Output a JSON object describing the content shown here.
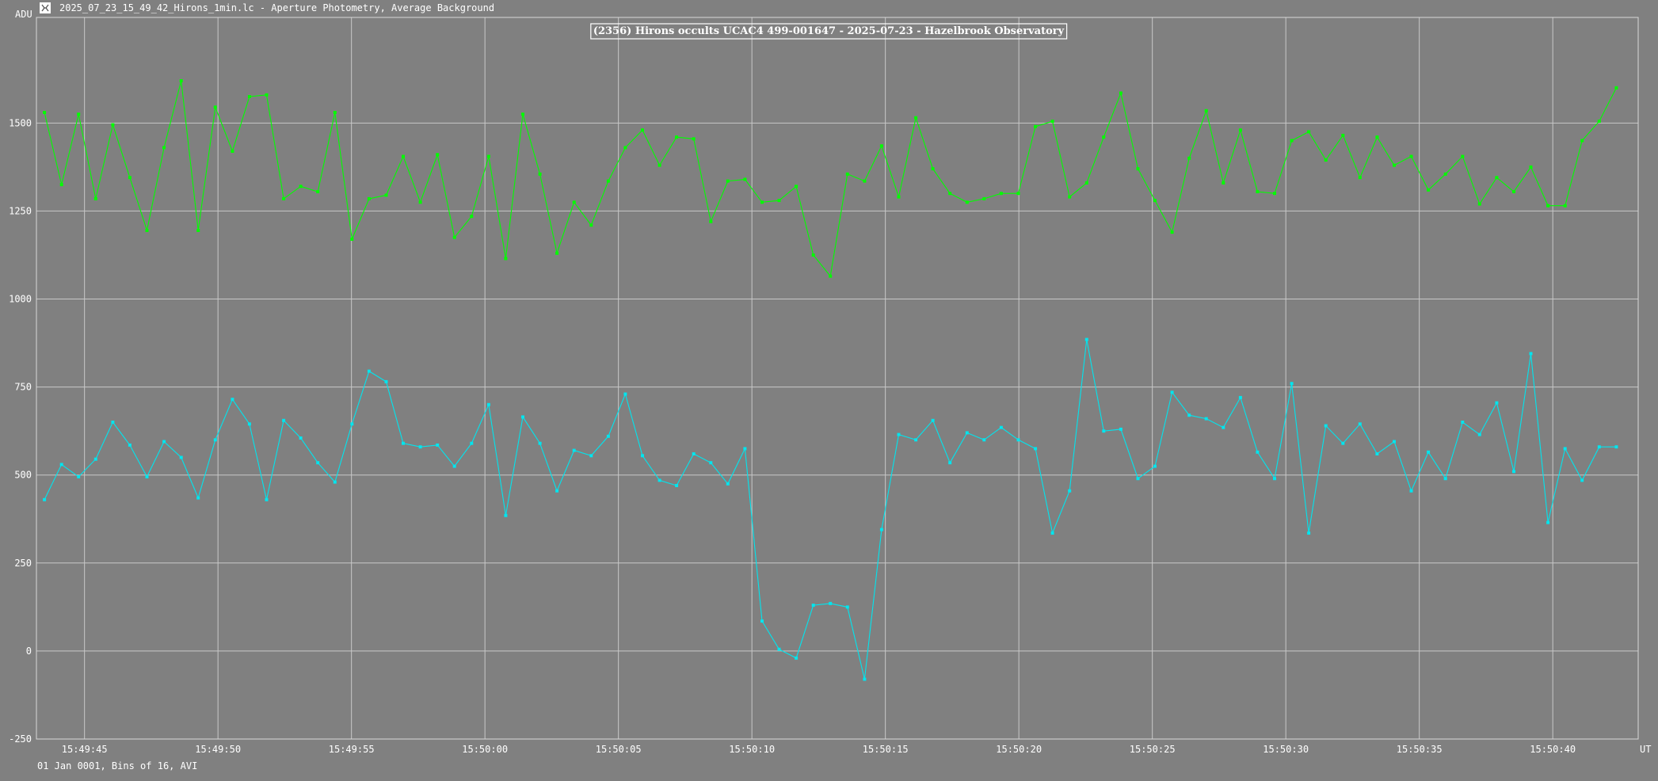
{
  "window": {
    "title": "2025_07_23_15_49_42_Hirons_1min.lc - Aperture Photometry, Average Background",
    "icon": "lightcurve-app-icon"
  },
  "status": {
    "bottom_left": "01 Jan 0001, Bins of 16, AVI"
  },
  "chart_data": {
    "type": "line",
    "title": "(2356) Hirons occults UCAC4 499-001647 - 2025-07-23 - Hazelbrook Observatory",
    "ylabel": "ADU",
    "xlabel": "UT",
    "ylim": [
      -250,
      1800
    ],
    "yticks": [
      -250,
      0,
      250,
      500,
      750,
      1000,
      1250,
      1500
    ],
    "xlim": [
      "15:49:43.2",
      "15:50:43.2"
    ],
    "xticks": [
      "15:49:45",
      "15:49:50",
      "15:49:55",
      "15:50:00",
      "15:50:05",
      "15:50:10",
      "15:50:15",
      "15:50:20",
      "15:50:25",
      "15:50:30",
      "15:50:35",
      "15:50:40"
    ],
    "grid": true,
    "x_start": "15:49:43.5",
    "x_step_seconds": 0.64,
    "series": [
      {
        "color": "#00ff00",
        "values": [
          1530,
          1325,
          1525,
          1285,
          1495,
          1345,
          1195,
          1430,
          1620,
          1195,
          1545,
          1420,
          1575,
          1580,
          1285,
          1320,
          1305,
          1530,
          1170,
          1285,
          1295,
          1405,
          1275,
          1410,
          1175,
          1235,
          1405,
          1115,
          1525,
          1355,
          1130,
          1275,
          1210,
          1335,
          1430,
          1480,
          1380,
          1460,
          1455,
          1220,
          1335,
          1340,
          1275,
          1280,
          1320,
          1125,
          1065,
          1355,
          1335,
          1435,
          1290,
          1515,
          1370,
          1300,
          1275,
          1285,
          1300,
          1300,
          1490,
          1505,
          1290,
          1330,
          1460,
          1585,
          1370,
          1280,
          1190,
          1400,
          1535,
          1330,
          1480,
          1305,
          1300,
          1450,
          1475,
          1395,
          1465,
          1345,
          1460,
          1380,
          1405,
          1310,
          1355,
          1405,
          1270,
          1345,
          1305,
          1375,
          1265,
          1265,
          1450,
          1505,
          1600
        ]
      },
      {
        "color": "#00e5ee",
        "values": [
          430,
          530,
          495,
          545,
          650,
          585,
          495,
          595,
          550,
          435,
          600,
          715,
          645,
          430,
          655,
          605,
          535,
          480,
          645,
          795,
          765,
          590,
          580,
          585,
          525,
          590,
          700,
          385,
          665,
          590,
          455,
          570,
          555,
          610,
          730,
          555,
          485,
          470,
          560,
          535,
          475,
          575,
          85,
          5,
          -20,
          130,
          135,
          125,
          -80,
          345,
          615,
          600,
          655,
          535,
          620,
          600,
          635,
          600,
          575,
          335,
          455,
          885,
          625,
          630,
          490,
          525,
          735,
          670,
          660,
          635,
          720,
          565,
          490,
          760,
          335,
          640,
          590,
          645,
          560,
          595,
          455,
          565,
          490,
          650,
          615,
          705,
          510,
          845,
          365,
          575,
          485,
          580,
          580
        ]
      }
    ]
  }
}
